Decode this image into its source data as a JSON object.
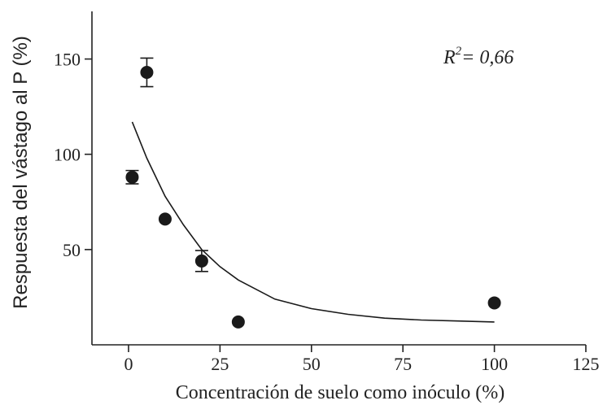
{
  "chart_data": {
    "type": "scatter",
    "xlabel": "Concentración de suelo como inóculo (%)",
    "ylabel": "Respuesta del vástago al P (%)",
    "xlim": [
      -10,
      125
    ],
    "ylim": [
      0,
      175
    ],
    "xticks": [
      0,
      25,
      50,
      75,
      100,
      125
    ],
    "yticks": [
      50,
      100,
      150
    ],
    "annotation": {
      "prefix": "R",
      "superscript": "2",
      "suffix": "= 0,66"
    },
    "series": [
      {
        "points": [
          {
            "x": 1,
            "y": 88,
            "err": 3.5
          },
          {
            "x": 5,
            "y": 143,
            "err": 7.5
          },
          {
            "x": 10,
            "y": 66
          },
          {
            "x": 20,
            "y": 44,
            "err": 5.5
          },
          {
            "x": 30,
            "y": 12
          },
          {
            "x": 100,
            "y": 22
          }
        ]
      }
    ],
    "fit_curve": {
      "x": [
        1,
        5,
        10,
        15,
        20,
        25,
        30,
        40,
        50,
        60,
        70,
        80,
        90,
        100
      ],
      "y": [
        117,
        98,
        78,
        63,
        50,
        41,
        34,
        24,
        19,
        16,
        14,
        13,
        12.5,
        12
      ]
    },
    "grid": false,
    "colors": {
      "marker": "#1a1a1a",
      "line": "#1a1a1a",
      "axis": "#222222"
    }
  }
}
